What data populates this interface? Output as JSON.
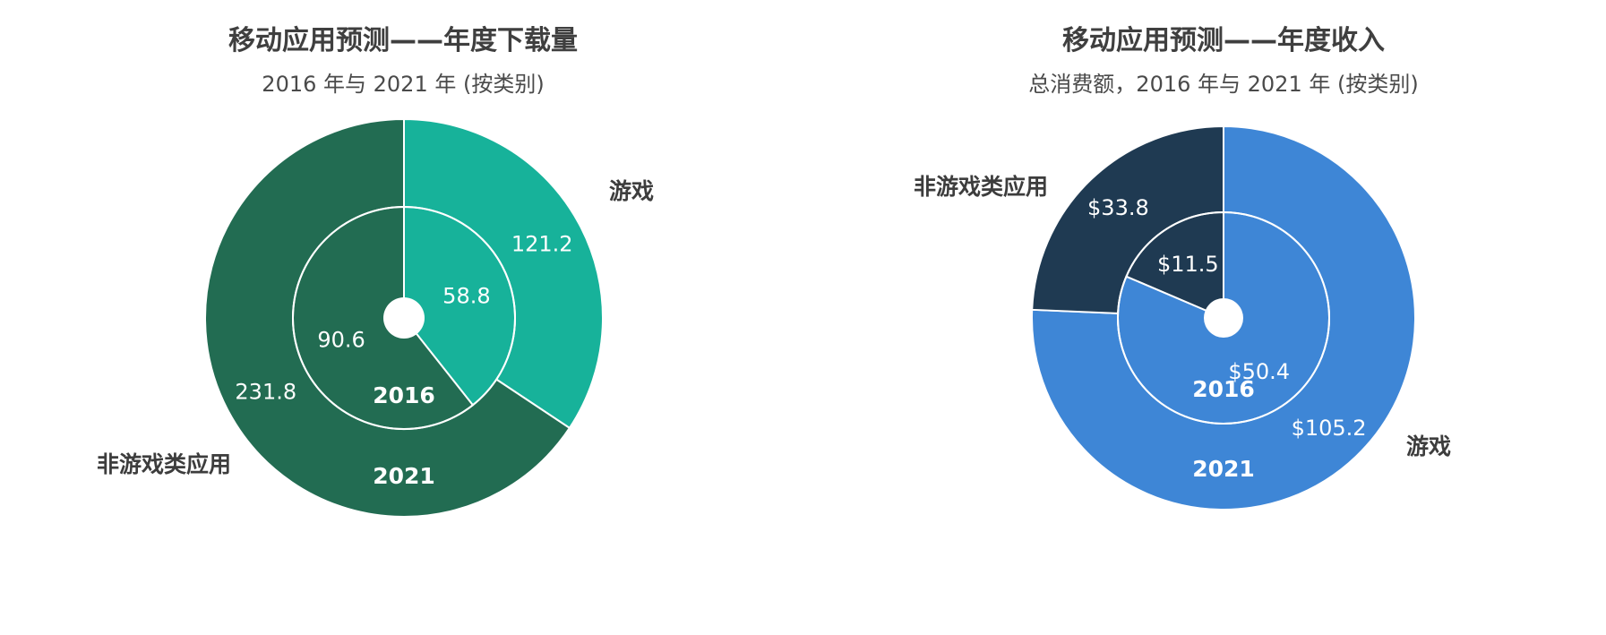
{
  "chart_data": [
    {
      "type": "pie",
      "variant": "nested-donut",
      "title": "移动应用预测——年度下载量",
      "subtitle": "2016 年与 2021 年 (按类别)",
      "categories": [
        "游戏",
        "非游戏类应用"
      ],
      "series": [
        {
          "ring": "inner",
          "name": "2016",
          "values": [
            58.8,
            90.6
          ],
          "labels": [
            "58.8",
            "90.6"
          ]
        },
        {
          "ring": "outer",
          "name": "2021",
          "values": [
            121.2,
            231.8
          ],
          "labels": [
            "121.2",
            "231.8"
          ]
        }
      ],
      "colors": {
        "inner": [
          "#17b29a",
          "#226c52"
        ],
        "outer": [
          "#17b29a",
          "#226c52"
        ]
      }
    },
    {
      "type": "pie",
      "variant": "nested-donut",
      "title": "移动应用预测——年度收入",
      "subtitle": "总消费额，2016 年与 2021 年 (按类别)",
      "categories": [
        "游戏",
        "非游戏类应用"
      ],
      "series": [
        {
          "ring": "inner",
          "name": "2016",
          "values": [
            50.4,
            11.5
          ],
          "labels": [
            "$50.4",
            "$11.5"
          ]
        },
        {
          "ring": "outer",
          "name": "2021",
          "values": [
            105.2,
            33.8
          ],
          "labels": [
            "$105.2",
            "$33.8"
          ]
        }
      ],
      "colors": {
        "inner": [
          "#3e86d6",
          "#1f3a52"
        ],
        "outer": [
          "#3e86d6",
          "#1f3a52"
        ]
      }
    }
  ]
}
